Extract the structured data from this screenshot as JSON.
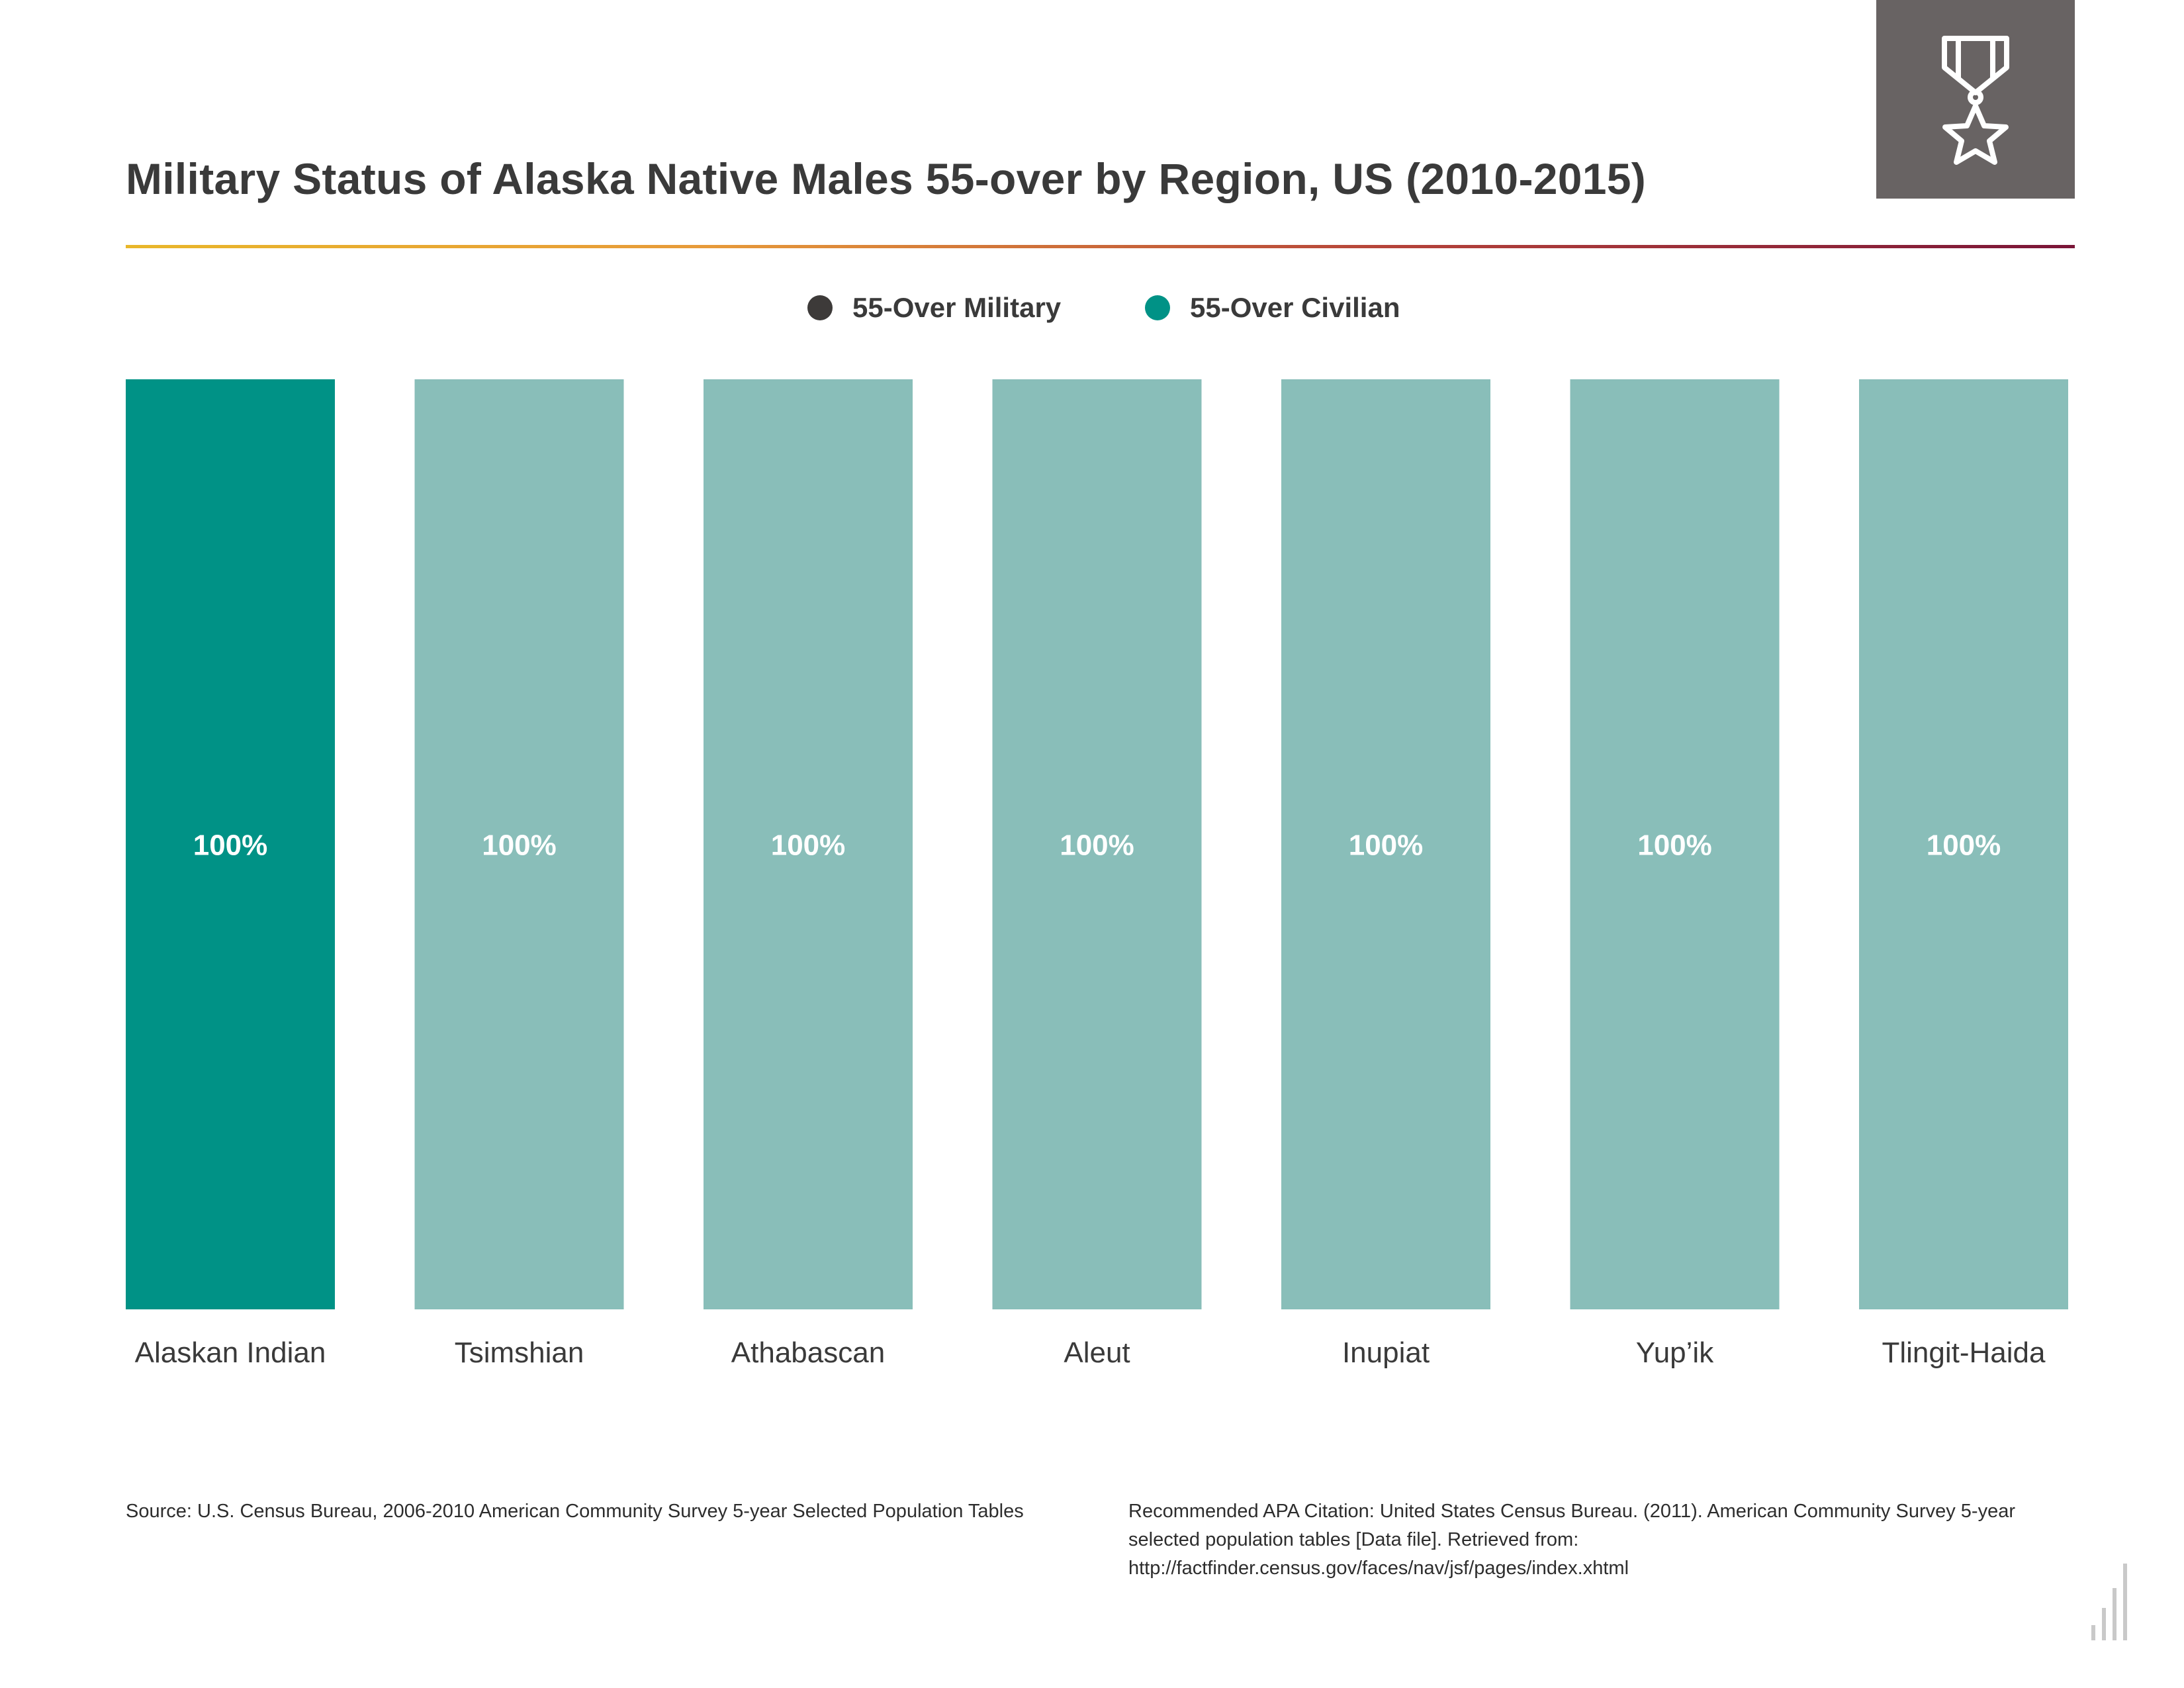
{
  "chart_data": {
    "type": "bar",
    "title": "Military Status of Alaska Native Males 55-over by Region, US (2010-2015)",
    "categories": [
      "Alaskan Indian",
      "Tsimshian",
      "Athabascan",
      "Aleut",
      "Inupiat",
      "Yup’ik",
      "Tlingit-Haida"
    ],
    "series": [
      {
        "name": "55-Over Military",
        "values": [
          0,
          0,
          0,
          0,
          0,
          0,
          0
        ]
      },
      {
        "name": "55-Over Civilian",
        "values": [
          100,
          100,
          100,
          100,
          100,
          100,
          100
        ]
      }
    ],
    "data_labels": [
      "100%",
      "100%",
      "100%",
      "100%",
      "100%",
      "100%",
      "100%"
    ],
    "stacked": true,
    "ylim": [
      0,
      100
    ],
    "grid": false,
    "legend_position": "top-center",
    "highlighted_category": "Alaskan Indian"
  },
  "legend": {
    "items": [
      {
        "label": "55-Over Military",
        "color": "#3d3a39"
      },
      {
        "label": "55-Over Civilian",
        "color": "#009286"
      }
    ]
  },
  "colors": {
    "highlight_bar": "#009286",
    "regular_bar": "#89beb9",
    "bar_label": "#ffffff",
    "category_label": "#3a3a3a"
  },
  "footer": {
    "source": "Source:  U.S. Census Bureau, 2006-2010 American Community Survey 5-year Selected Population Tables",
    "citation": "Recommended APA Citation: United States Census Bureau. (2011). American Community Survey 5-year selected population tables [Data file]. Retrieved from: http://factfinder.census.gov/faces/nav/jsf/pages/index.xhtml"
  },
  "icons": {
    "header": "military-medal-icon",
    "brand": "bar-graph-logo-icon"
  }
}
